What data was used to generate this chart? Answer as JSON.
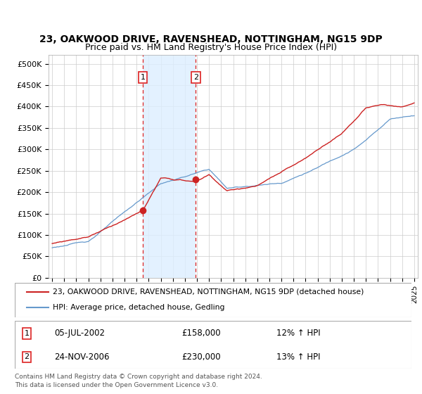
{
  "title": "23, OAKWOOD DRIVE, RAVENSHEAD, NOTTINGHAM, NG15 9DP",
  "subtitle": "Price paid vs. HM Land Registry's House Price Index (HPI)",
  "ylabel_ticks": [
    "£0",
    "£50K",
    "£100K",
    "£150K",
    "£200K",
    "£250K",
    "£300K",
    "£350K",
    "£400K",
    "£450K",
    "£500K"
  ],
  "ytick_vals": [
    0,
    50000,
    100000,
    150000,
    200000,
    250000,
    300000,
    350000,
    400000,
    450000,
    500000
  ],
  "ylim": [
    0,
    520000
  ],
  "xlim_start": 1994.7,
  "xlim_end": 2025.3,
  "transaction1_date": 2002.51,
  "transaction1_price": 158000,
  "transaction2_date": 2006.9,
  "transaction2_price": 230000,
  "legend_line1": "23, OAKWOOD DRIVE, RAVENSHEAD, NOTTINGHAM, NG15 9DP (detached house)",
  "legend_line2": "HPI: Average price, detached house, Gedling",
  "footer": "Contains HM Land Registry data © Crown copyright and database right 2024.\nThis data is licensed under the Open Government Licence v3.0.",
  "color_red": "#cc2222",
  "color_blue": "#6699cc",
  "color_shading": "#ddeeff",
  "color_dashed": "#dd2222",
  "bg_color": "#ffffff"
}
